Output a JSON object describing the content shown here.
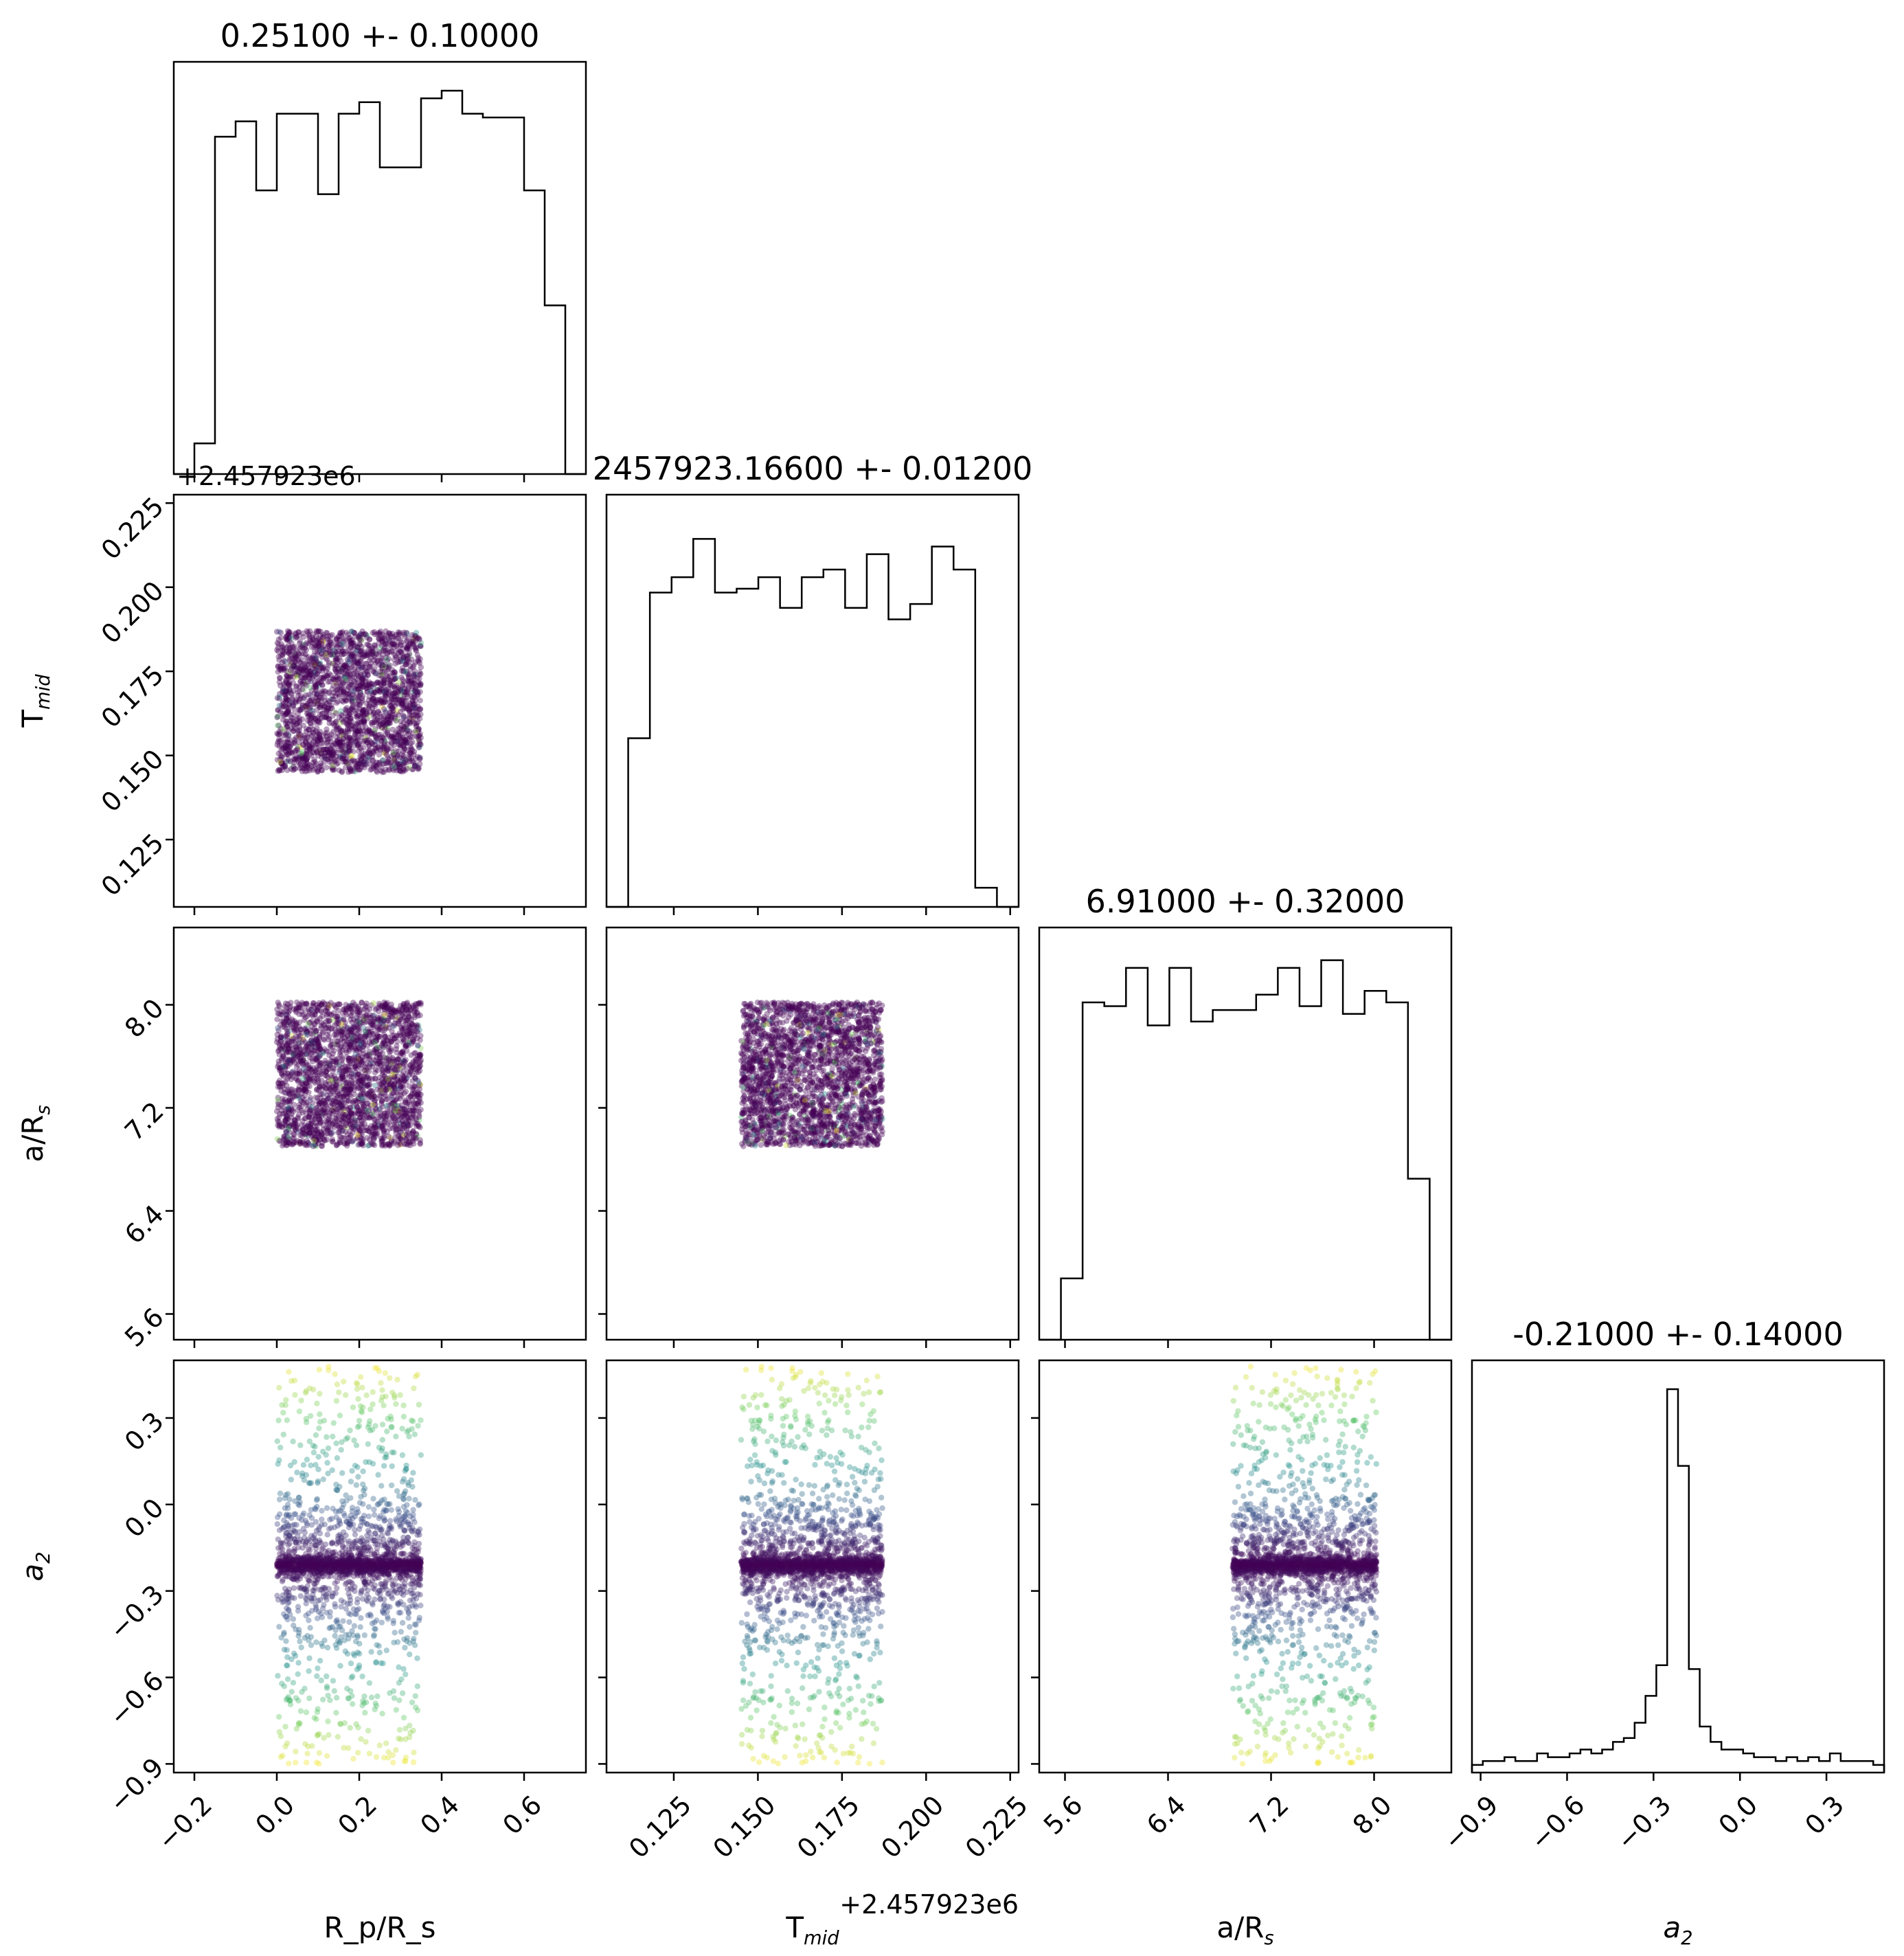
{
  "chart_data": {
    "type": "scatter",
    "variant": "corner-plot",
    "parameters": [
      {
        "key": "rp",
        "label": "R_p/R_s",
        "title": "0.25100 +- 0.10000",
        "range": [
          -0.25,
          0.75
        ],
        "ticks": [
          -0.2,
          0.0,
          0.2,
          0.4,
          0.6
        ],
        "tick_labels": [
          "−0.2",
          "0.0",
          "0.2",
          "0.4",
          "0.6"
        ],
        "sample_range": [
          0.0,
          0.35
        ],
        "hist": [
          0.0,
          0.08,
          0.88,
          0.92,
          0.74,
          0.94,
          0.94,
          0.73,
          0.94,
          0.97,
          0.8,
          0.8,
          0.98,
          1.0,
          0.94,
          0.93,
          0.93,
          0.74,
          0.44,
          0.0
        ]
      },
      {
        "key": "tmid",
        "label": "T_mid",
        "title": "2457923.16600 +- 0.01200",
        "offset": "+2.457923e6",
        "range": [
          0.105,
          0.2275
        ],
        "ticks": [
          0.125,
          0.15,
          0.175,
          0.2,
          0.225
        ],
        "tick_labels": [
          "0.125",
          "0.150",
          "0.175",
          "0.200",
          "0.225"
        ],
        "sample_range": [
          0.145,
          0.187
        ],
        "hist": [
          0.0,
          0.44,
          0.82,
          0.86,
          0.96,
          0.82,
          0.83,
          0.86,
          0.78,
          0.86,
          0.88,
          0.78,
          0.92,
          0.75,
          0.79,
          0.94,
          0.88,
          0.05,
          0.0
        ]
      },
      {
        "key": "ars",
        "label": "a/R_s",
        "title": "6.91000 +- 0.32000",
        "range": [
          5.4,
          8.6
        ],
        "ticks": [
          5.6,
          6.4,
          7.2,
          8.0
        ],
        "tick_labels": [
          "5.6",
          "6.4",
          "7.2",
          "8.0"
        ],
        "sample_range": [
          6.9,
          8.02
        ],
        "hist": [
          0.0,
          0.16,
          0.88,
          0.87,
          0.97,
          0.82,
          0.97,
          0.83,
          0.86,
          0.86,
          0.9,
          0.97,
          0.87,
          0.99,
          0.85,
          0.91,
          0.88,
          0.42,
          0.0
        ]
      },
      {
        "key": "a2",
        "label": "a_2",
        "title": "-0.21000 +- 0.14000",
        "range": [
          -0.93,
          0.5
        ],
        "ticks": [
          -0.9,
          -0.6,
          -0.3,
          0.0,
          0.3
        ],
        "tick_labels": [
          "−0.9",
          "−0.6",
          "−0.3",
          "0.0",
          "0.3"
        ],
        "sample_center": -0.21,
        "hist": [
          0.02,
          0.03,
          0.03,
          0.04,
          0.03,
          0.03,
          0.05,
          0.04,
          0.04,
          0.05,
          0.06,
          0.05,
          0.06,
          0.08,
          0.09,
          0.13,
          0.2,
          0.28,
          1.0,
          0.8,
          0.27,
          0.12,
          0.08,
          0.06,
          0.06,
          0.05,
          0.04,
          0.04,
          0.03,
          0.04,
          0.03,
          0.04,
          0.03,
          0.05,
          0.03,
          0.03,
          0.03,
          0.02
        ]
      }
    ],
    "scatter_colormap": [
      "#440154",
      "#3b528b",
      "#21918c",
      "#5ec962",
      "#fde725"
    ],
    "point_color": "#440154"
  }
}
